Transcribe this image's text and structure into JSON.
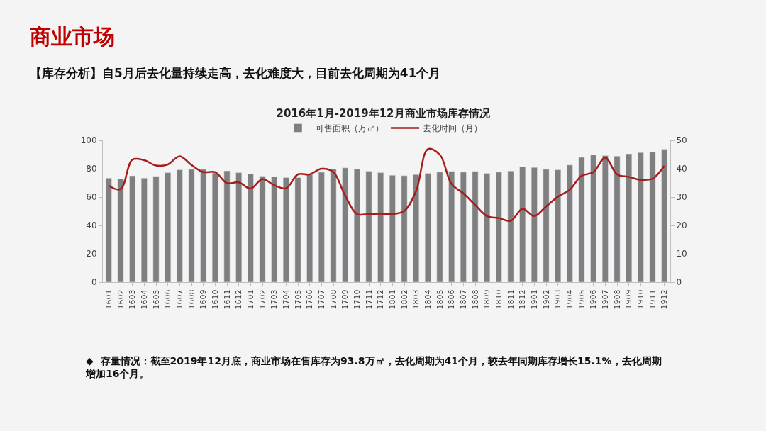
{
  "chart_data": {
    "type": "bar",
    "title": "2016年1月-2019年12月商业市场库存情况",
    "categories": [
      "1601",
      "1602",
      "1603",
      "1604",
      "1605",
      "1606",
      "1607",
      "1608",
      "1609",
      "1610",
      "1611",
      "1612",
      "1701",
      "1702",
      "1703",
      "1704",
      "1705",
      "1706",
      "1707",
      "1708",
      "1709",
      "1710",
      "1711",
      "1712",
      "1801",
      "1802",
      "1803",
      "1804",
      "1805",
      "1806",
      "1807",
      "1808",
      "1809",
      "1810",
      "1811",
      "1812",
      "1901",
      "1902",
      "1903",
      "1904",
      "1905",
      "1906",
      "1907",
      "1908",
      "1909",
      "1910",
      "1911",
      "1912"
    ],
    "series": [
      {
        "name": "可售面积（万㎡）",
        "color": "#7f7f7f",
        "values": [
          73.4,
          73,
          75,
          73.4,
          74.6,
          77.2,
          79.2,
          79.6,
          79.6,
          77,
          78.5,
          77.2,
          76.3,
          74.7,
          74.3,
          73.8,
          73.8,
          76,
          77.5,
          79.7,
          80.6,
          79.7,
          78.2,
          77.2,
          75.4,
          75.1,
          75.9,
          76.7,
          77.6,
          78.1,
          77.6,
          78.1,
          76.7,
          77.6,
          78.4,
          81.4,
          80.9,
          79.6,
          79.2,
          82.6,
          88,
          89.7,
          89.2,
          88.9,
          90.5,
          91.4,
          91.7,
          93.8
        ]
      },
      {
        "name": "去化时间（月）",
        "type": "line",
        "axis": "y2",
        "color": "#a61c1c",
        "values": [
          34,
          32.8,
          43.2,
          43,
          41.1,
          41.5,
          44.4,
          41.3,
          38.8,
          38.8,
          34.9,
          35.2,
          33,
          36.3,
          34.2,
          33.1,
          38,
          38,
          40,
          38.8,
          30.5,
          24,
          24,
          24.1,
          24,
          25.1,
          32.1,
          46.9,
          45,
          34.6,
          31.3,
          27.2,
          23.3,
          22.6,
          21.6,
          25.9,
          23.3,
          26.7,
          30.1,
          32.6,
          37.5,
          38.8,
          43.9,
          38,
          37.1,
          36.1,
          36.5,
          41
        ]
      }
    ],
    "ylim": [
      0,
      100
    ],
    "yticks": [
      0,
      20,
      40,
      60,
      80,
      100
    ],
    "y2lim": [
      0,
      50
    ],
    "y2ticks": [
      0,
      10,
      20,
      30,
      40,
      50
    ],
    "legend": "top",
    "grid": false,
    "annotations": [
      "商业市场",
      "【库存分析】自5月后去化量持续走高，去化难度大，目前去化周期为41个月",
      "◆  存量情况：截至2019年12月底，商业市场在售库存为93.8万㎡，去化周期为41个月，较去年同期库存增长15.1%，去化周期增加16个月。"
    ]
  }
}
